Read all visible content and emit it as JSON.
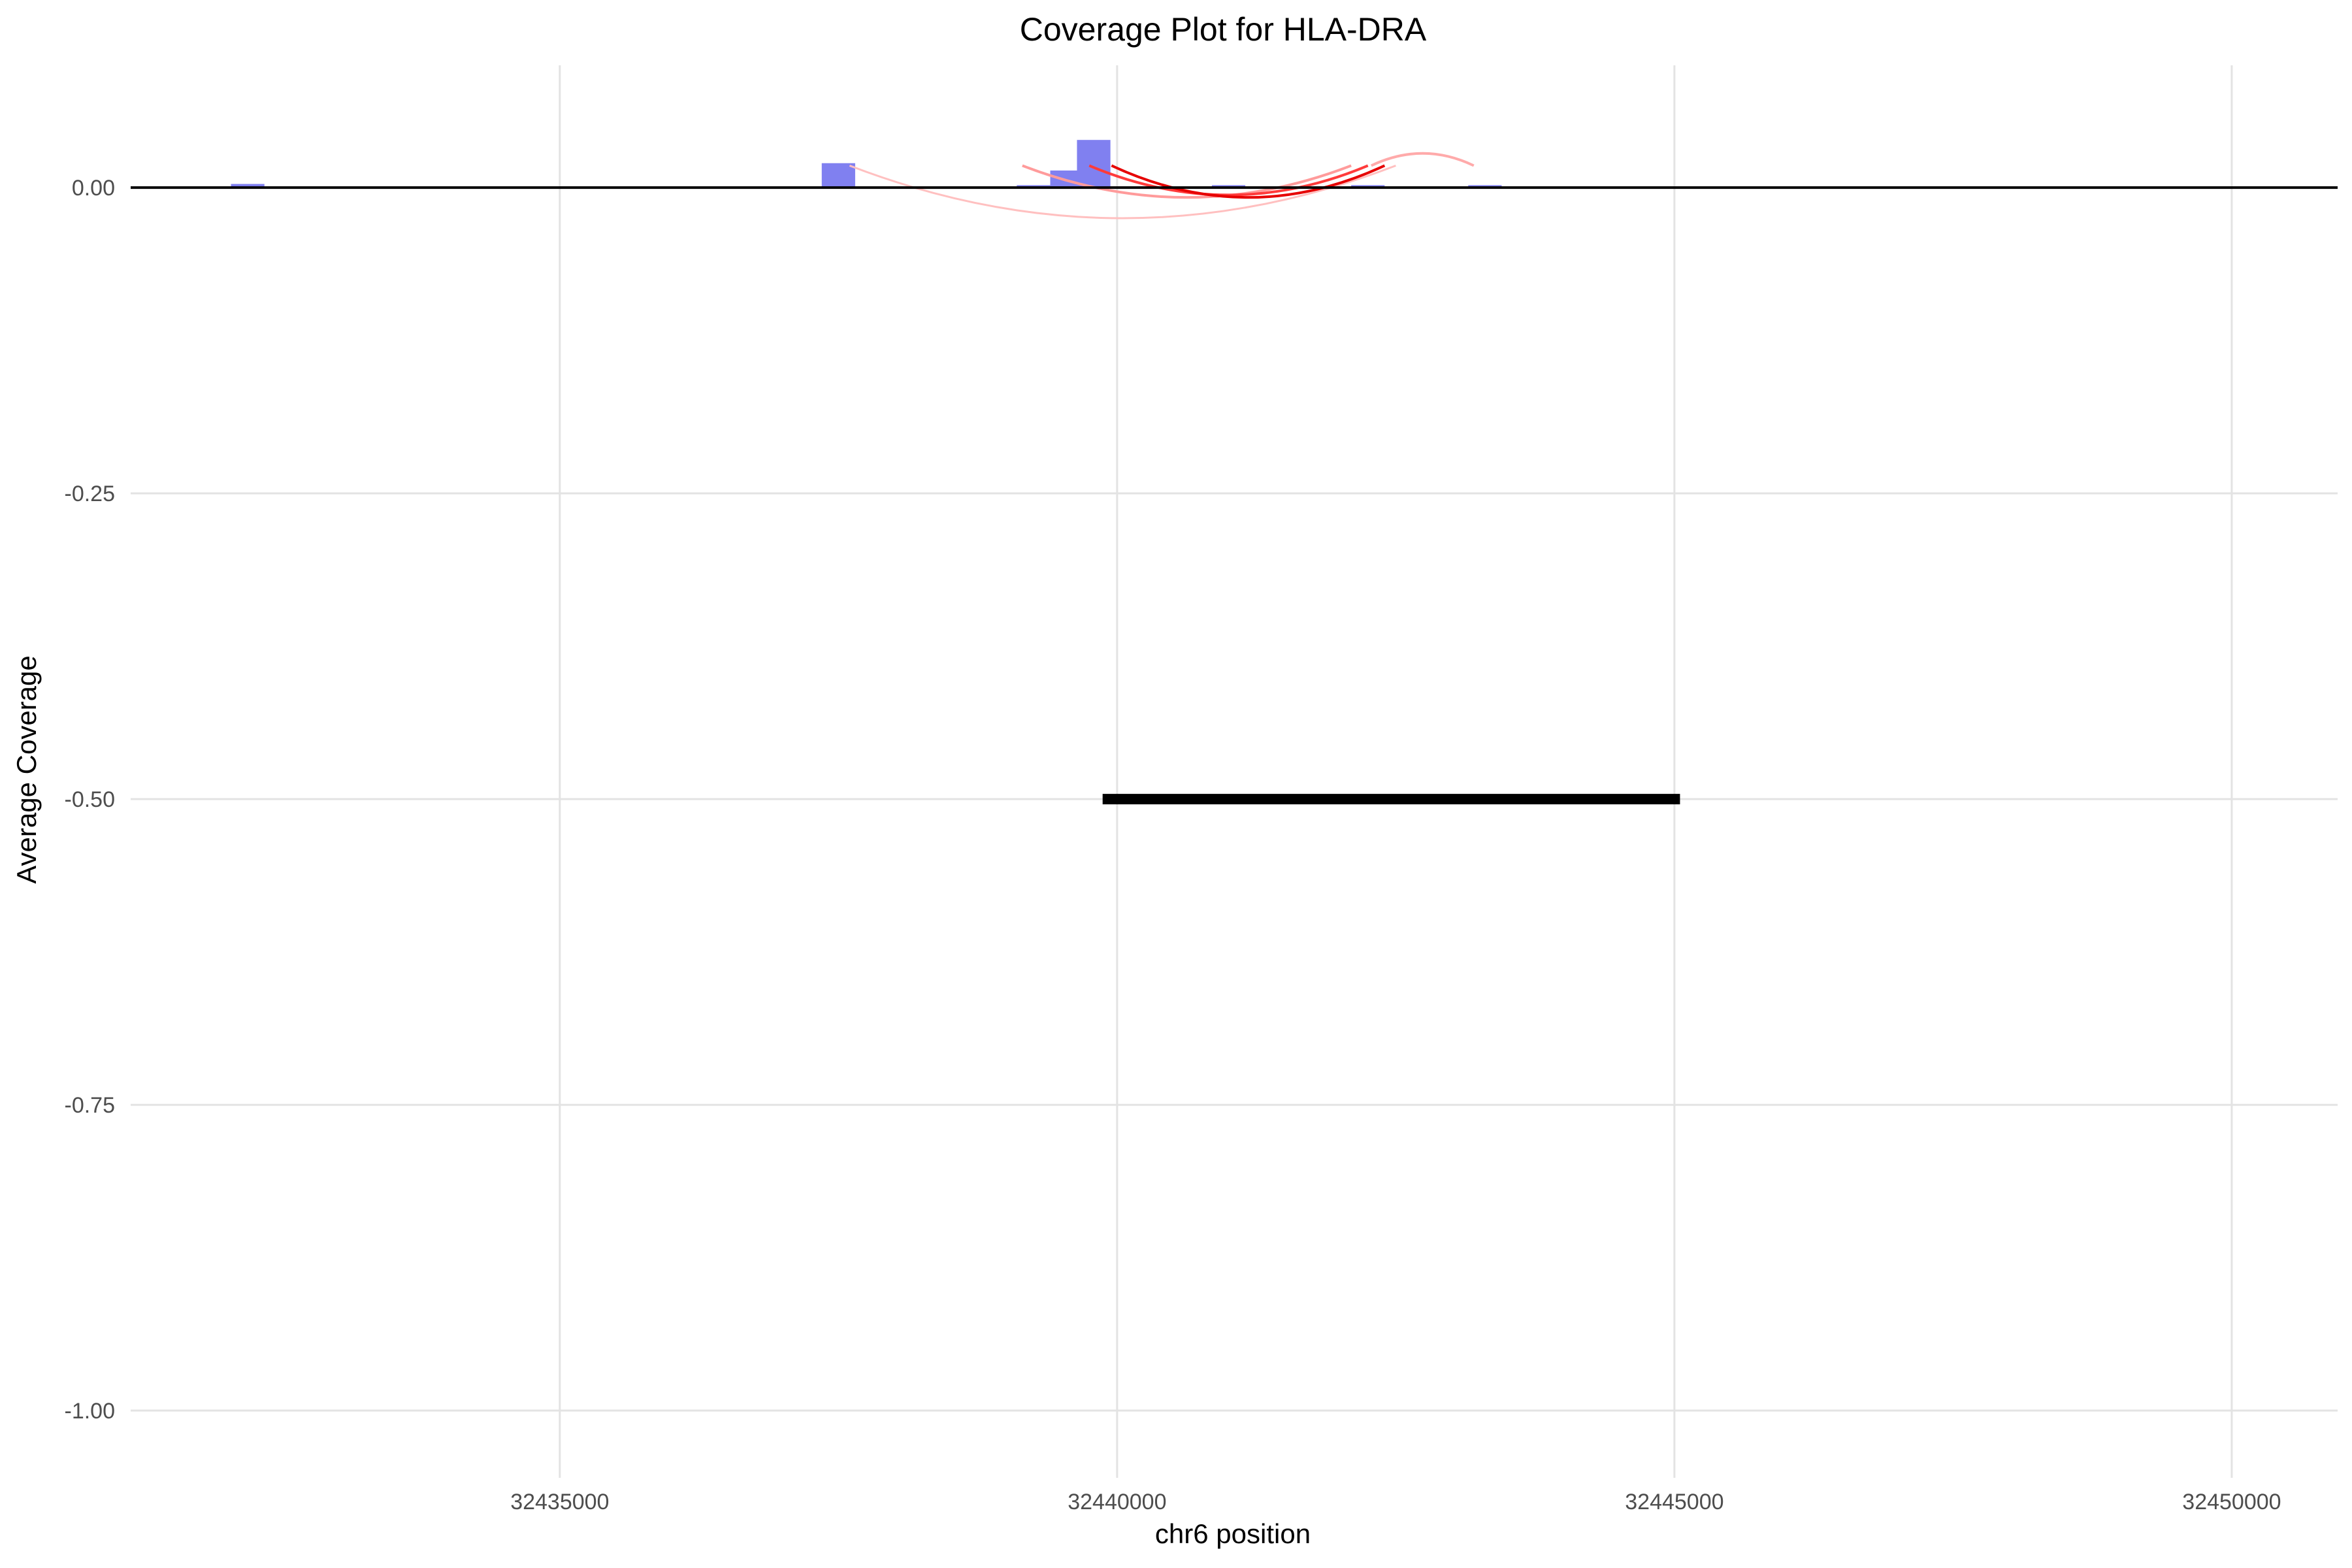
{
  "chart_data": {
    "type": "bar",
    "title": "Coverage Plot for HLA-DRA",
    "xlabel": "chr6 position",
    "ylabel": "Average Coverage",
    "xlim": [
      32431150,
      32450950
    ],
    "ylim": [
      -1.055,
      0.1
    ],
    "x_ticks": [
      32435000,
      32440000,
      32445000,
      32450000
    ],
    "x_tick_labels": [
      "32435000",
      "32440000",
      "32445000",
      "32450000"
    ],
    "y_ticks": [
      0.0,
      -0.25,
      -0.5,
      -0.75,
      -1.0
    ],
    "y_tick_labels": [
      "0.00",
      "-0.25",
      "-0.50",
      "-0.75",
      "-1.00"
    ],
    "grid": true,
    "baseline": 0,
    "coverage_bars": {
      "color": "#8080f0",
      "bin_width": 300,
      "bins": [
        {
          "x": 32432200,
          "y": 0.003
        },
        {
          "x": 32437500,
          "y": 0.02
        },
        {
          "x": 32439250,
          "y": 0.002
        },
        {
          "x": 32439550,
          "y": 0.014
        },
        {
          "x": 32439790,
          "y": 0.039
        },
        {
          "x": 32441000,
          "y": 0.002
        },
        {
          "x": 32442250,
          "y": 0.002
        },
        {
          "x": 32443300,
          "y": 0.002
        }
      ]
    },
    "links": [
      {
        "start": 32437600,
        "end": 32442500,
        "peak": -0.025,
        "color": "#ffc0c0",
        "width": 3
      },
      {
        "start": 32439150,
        "end": 32442100,
        "peak": -0.008,
        "color": "#ff9b9b",
        "width": 4
      },
      {
        "start": 32439750,
        "end": 32442250,
        "peak": -0.006,
        "color": "#ff3b3b",
        "width": 4
      },
      {
        "start": 32439950,
        "end": 32442400,
        "peak": -0.008,
        "color": "#e60000",
        "width": 4
      },
      {
        "start": 32442280,
        "end": 32443200,
        "peak": 0.028,
        "color": "#ffaaaa",
        "width": 4
      }
    ],
    "gene_segment": {
      "name": "HLA-DRA",
      "start": 32439870,
      "end": 32445050,
      "y": -0.5,
      "color": "#000000"
    }
  }
}
